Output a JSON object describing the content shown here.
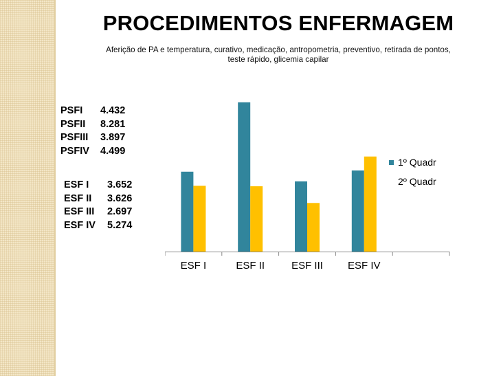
{
  "slide": {
    "title": "PROCEDIMENTOS ENFERMAGEM",
    "subtitle": "Aferição de PA e temperatura,  curativo,  medicação, antropometria,  preventivo,  retirada de pontos, teste rápido, glicemia capilar"
  },
  "psf_stats": [
    {
      "label": "PSFI",
      "value": "4.432"
    },
    {
      "label": "PSFII",
      "value": "8.281"
    },
    {
      "label": "PSFIII",
      "value": "3.897"
    },
    {
      "label": "PSFIV",
      "value": "4.499"
    }
  ],
  "esf_stats": [
    {
      "label": "ESF I",
      "value": "3.652"
    },
    {
      "label": "ESF II",
      "value": "3.626"
    },
    {
      "label": "ESF III",
      "value": "2.697"
    },
    {
      "label": "ESF IV",
      "value": "5.274"
    }
  ],
  "chart_data": {
    "type": "bar",
    "categories": [
      "ESF I",
      "ESF II",
      "ESF III",
      "ESF IV",
      ""
    ],
    "series": [
      {
        "name": "1º Quadr",
        "color": "#31859c",
        "values": [
          4432,
          8281,
          3897,
          4499,
          null
        ]
      },
      {
        "name": "2º Quadr",
        "color": "#ffc000",
        "values": [
          3652,
          3626,
          2697,
          5274,
          null
        ]
      }
    ],
    "ylim": [
      0,
      9000
    ],
    "grid": false,
    "legend_position": "right"
  }
}
